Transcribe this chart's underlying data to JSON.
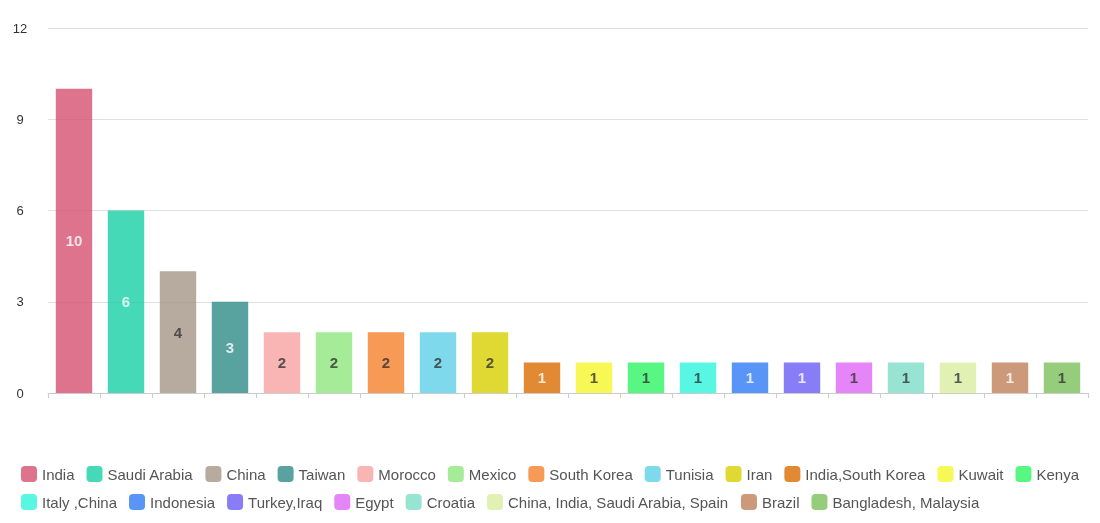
{
  "chart_data": {
    "type": "bar",
    "stacked": true,
    "categories": [
      null,
      null,
      null,
      null,
      null,
      null,
      null,
      null,
      null,
      null,
      null,
      null,
      null,
      null,
      null,
      null,
      null,
      null,
      null,
      null
    ],
    "series": [
      {
        "name": "India",
        "color": "#d4506f",
        "values": [
          10,
          null,
          null,
          null,
          null,
          null,
          null,
          null,
          null,
          null,
          null,
          null,
          null,
          null,
          null,
          null,
          null,
          null,
          null,
          null
        ]
      },
      {
        "name": "Saudi Arabia",
        "color": "#16d0a6",
        "values": [
          null,
          6,
          null,
          null,
          null,
          null,
          null,
          null,
          null,
          null,
          null,
          null,
          null,
          null,
          null,
          null,
          null,
          null,
          null,
          null
        ]
      },
      {
        "name": "China",
        "color": "#a59587",
        "values": [
          null,
          null,
          4,
          null,
          null,
          null,
          null,
          null,
          null,
          null,
          null,
          null,
          null,
          null,
          null,
          null,
          null,
          null,
          null,
          null
        ]
      },
      {
        "name": "Taiwan",
        "color": "#2e8b88",
        "values": [
          null,
          null,
          null,
          3,
          null,
          null,
          null,
          null,
          null,
          null,
          null,
          null,
          null,
          null,
          null,
          null,
          null,
          null,
          null,
          null
        ]
      },
      {
        "name": "Morocco",
        "color": "#f8a1a1",
        "values": [
          null,
          null,
          null,
          null,
          2,
          null,
          null,
          null,
          null,
          null,
          null,
          null,
          null,
          null,
          null,
          null,
          null,
          null,
          null,
          null
        ]
      },
      {
        "name": "Mexico",
        "color": "#8ee67e",
        "values": [
          null,
          null,
          null,
          null,
          null,
          2,
          null,
          null,
          null,
          null,
          null,
          null,
          null,
          null,
          null,
          null,
          null,
          null,
          null,
          null
        ]
      },
      {
        "name": "South Korea",
        "color": "#f5812b",
        "values": [
          null,
          null,
          null,
          null,
          null,
          null,
          2,
          null,
          null,
          null,
          null,
          null,
          null,
          null,
          null,
          null,
          null,
          null,
          null,
          null
        ]
      },
      {
        "name": "Tunisia",
        "color": "#5fd0e8",
        "values": [
          null,
          null,
          null,
          null,
          null,
          null,
          null,
          2,
          null,
          null,
          null,
          null,
          null,
          null,
          null,
          null,
          null,
          null,
          null,
          null
        ]
      },
      {
        "name": "Iran",
        "color": "#d8d000",
        "values": [
          null,
          null,
          null,
          null,
          null,
          null,
          null,
          null,
          2,
          null,
          null,
          null,
          null,
          null,
          null,
          null,
          null,
          null,
          null,
          null
        ]
      },
      {
        "name": "India,South Korea",
        "color": "#d96b00",
        "values": [
          null,
          null,
          null,
          null,
          null,
          null,
          null,
          null,
          null,
          1,
          null,
          null,
          null,
          null,
          null,
          null,
          null,
          null,
          null,
          null
        ]
      },
      {
        "name": "Kuwait",
        "color": "#f5f52a",
        "values": [
          null,
          null,
          null,
          null,
          null,
          null,
          null,
          null,
          null,
          null,
          1,
          null,
          null,
          null,
          null,
          null,
          null,
          null,
          null,
          null
        ]
      },
      {
        "name": "Kenya",
        "color": "#2ef565",
        "values": [
          null,
          null,
          null,
          null,
          null,
          null,
          null,
          null,
          null,
          null,
          null,
          1,
          null,
          null,
          null,
          null,
          null,
          null,
          null,
          null
        ]
      },
      {
        "name": "Italy ,China",
        "color": "#2ef5dc",
        "values": [
          null,
          null,
          null,
          null,
          null,
          null,
          null,
          null,
          null,
          null,
          null,
          null,
          1,
          null,
          null,
          null,
          null,
          null,
          null,
          null
        ]
      },
      {
        "name": "Indonesia",
        "color": "#2e7bf5",
        "values": [
          null,
          null,
          null,
          null,
          null,
          null,
          null,
          null,
          null,
          null,
          null,
          null,
          null,
          1,
          null,
          null,
          null,
          null,
          null,
          null
        ]
      },
      {
        "name": "Turkey,Iraq",
        "color": "#6a5cf5",
        "values": [
          null,
          null,
          null,
          null,
          null,
          null,
          null,
          null,
          null,
          null,
          null,
          null,
          null,
          null,
          1,
          null,
          null,
          null,
          null,
          null
        ]
      },
      {
        "name": "Egypt",
        "color": "#e066f5",
        "values": [
          null,
          null,
          null,
          null,
          null,
          null,
          null,
          null,
          null,
          null,
          null,
          null,
          null,
          null,
          null,
          1,
          null,
          null,
          null,
          null
        ]
      },
      {
        "name": "Croatia",
        "color": "#7dddc8",
        "values": [
          null,
          null,
          null,
          null,
          null,
          null,
          null,
          null,
          null,
          null,
          null,
          null,
          null,
          null,
          null,
          null,
          1,
          null,
          null,
          null
        ]
      },
      {
        "name": "China, India, Saudi Arabia, Spain",
        "color": "#d8eea0",
        "values": [
          null,
          null,
          null,
          null,
          null,
          null,
          null,
          null,
          null,
          null,
          null,
          null,
          null,
          null,
          null,
          null,
          null,
          1,
          null,
          null
        ]
      },
      {
        "name": "Brazil",
        "color": "#c0805a",
        "values": [
          null,
          null,
          null,
          null,
          null,
          null,
          null,
          null,
          null,
          null,
          null,
          null,
          null,
          null,
          null,
          null,
          null,
          null,
          1,
          null
        ]
      },
      {
        "name": "Bangladesh, Malaysia",
        "color": "#7bc15b",
        "values": [
          null,
          null,
          null,
          null,
          null,
          null,
          null,
          null,
          null,
          null,
          null,
          null,
          null,
          null,
          null,
          null,
          null,
          null,
          null,
          1
        ]
      }
    ],
    "ylim": [
      0,
      12
    ],
    "yticks": [
      0,
      3,
      6,
      9,
      12
    ],
    "grid": "y",
    "legend": "bottom",
    "data_labels": true,
    "tick_labels": "y"
  }
}
